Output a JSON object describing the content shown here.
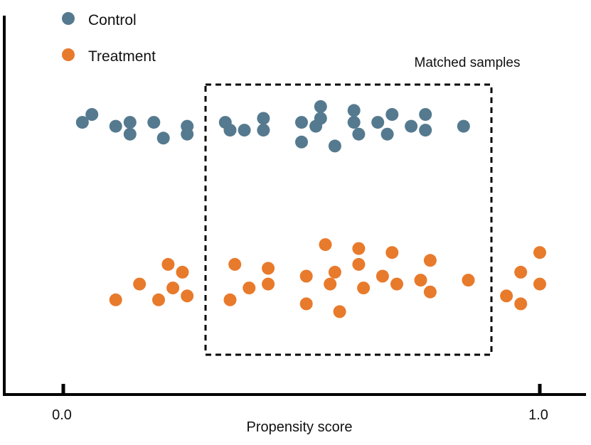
{
  "legend": {
    "items": [
      {
        "label": "Control",
        "color": "#557a8f"
      },
      {
        "label": "Treatment",
        "color": "#e87a2c"
      }
    ]
  },
  "box": {
    "label": "Matched samples"
  },
  "axis": {
    "xlabel": "Propensity score",
    "ticks": [
      {
        "label": "0.0",
        "value": 0.0
      },
      {
        "label": "1.0",
        "value": 1.0
      }
    ]
  },
  "chart_data": {
    "type": "scatter",
    "xlim": [
      0.0,
      1.0
    ],
    "xlabel": "Propensity score",
    "box_range": [
      0.3,
      0.9
    ],
    "series": [
      {
        "name": "Control",
        "color": "#557a8f",
        "points": [
          [
            0.04,
            0.69
          ],
          [
            0.06,
            0.71
          ],
          [
            0.11,
            0.68
          ],
          [
            0.14,
            0.69
          ],
          [
            0.14,
            0.66
          ],
          [
            0.19,
            0.69
          ],
          [
            0.21,
            0.65
          ],
          [
            0.26,
            0.68
          ],
          [
            0.26,
            0.66
          ],
          [
            0.34,
            0.69
          ],
          [
            0.35,
            0.67
          ],
          [
            0.38,
            0.67
          ],
          [
            0.42,
            0.67
          ],
          [
            0.42,
            0.7
          ],
          [
            0.5,
            0.69
          ],
          [
            0.5,
            0.64
          ],
          [
            0.53,
            0.68
          ],
          [
            0.54,
            0.7
          ],
          [
            0.54,
            0.73
          ],
          [
            0.57,
            0.63
          ],
          [
            0.61,
            0.69
          ],
          [
            0.61,
            0.72
          ],
          [
            0.62,
            0.66
          ],
          [
            0.66,
            0.69
          ],
          [
            0.68,
            0.66
          ],
          [
            0.69,
            0.71
          ],
          [
            0.73,
            0.68
          ],
          [
            0.76,
            0.71
          ],
          [
            0.76,
            0.67
          ],
          [
            0.84,
            0.68
          ]
        ]
      },
      {
        "name": "Treatment",
        "color": "#e87a2c",
        "points": [
          [
            0.11,
            0.24
          ],
          [
            0.16,
            0.28
          ],
          [
            0.2,
            0.24
          ],
          [
            0.22,
            0.33
          ],
          [
            0.23,
            0.27
          ],
          [
            0.25,
            0.31
          ],
          [
            0.26,
            0.25
          ],
          [
            0.35,
            0.24
          ],
          [
            0.36,
            0.33
          ],
          [
            0.39,
            0.27
          ],
          [
            0.43,
            0.32
          ],
          [
            0.43,
            0.28
          ],
          [
            0.51,
            0.23
          ],
          [
            0.51,
            0.3
          ],
          [
            0.55,
            0.38
          ],
          [
            0.56,
            0.28
          ],
          [
            0.57,
            0.31
          ],
          [
            0.58,
            0.21
          ],
          [
            0.62,
            0.33
          ],
          [
            0.62,
            0.37
          ],
          [
            0.63,
            0.27
          ],
          [
            0.67,
            0.3
          ],
          [
            0.69,
            0.36
          ],
          [
            0.7,
            0.28
          ],
          [
            0.75,
            0.29
          ],
          [
            0.77,
            0.26
          ],
          [
            0.77,
            0.34
          ],
          [
            0.85,
            0.29
          ],
          [
            0.93,
            0.25
          ],
          [
            0.96,
            0.31
          ],
          [
            0.96,
            0.23
          ],
          [
            1.0,
            0.28
          ],
          [
            1.0,
            0.36
          ]
        ]
      }
    ]
  }
}
